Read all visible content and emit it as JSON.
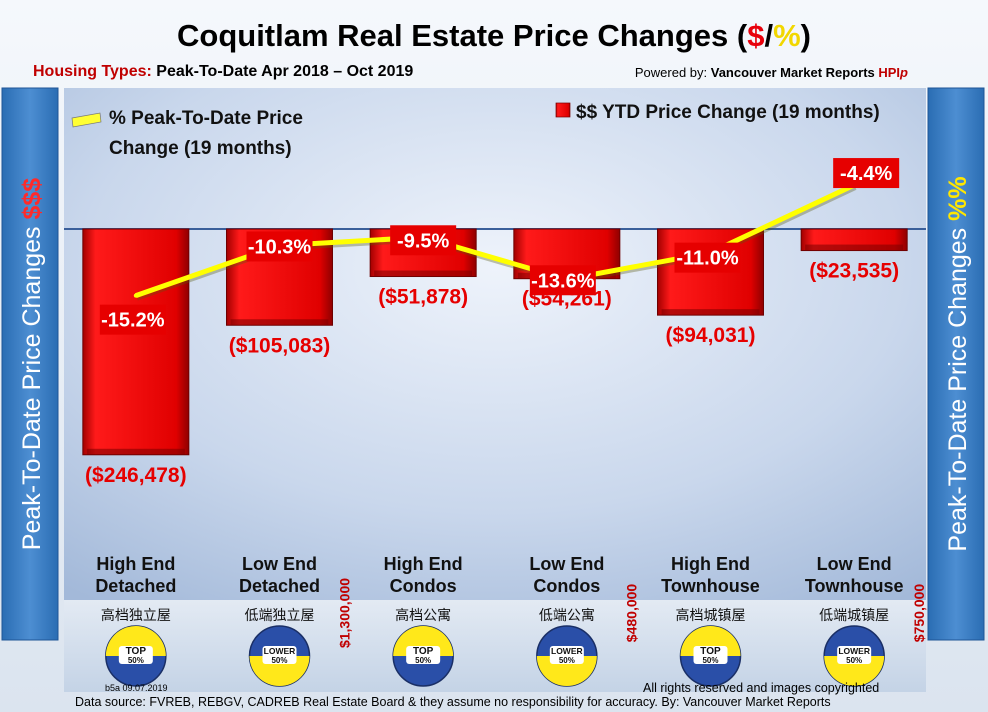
{
  "title": {
    "main": "Coquitlam Real Estate Price Changes (",
    "dollar": "$",
    "slash": "/",
    "percent": "%",
    "close": ")"
  },
  "subtitle": {
    "label": "Housing Types: ",
    "value": "Peak-To-Date Apr 2018 – Oct 2019"
  },
  "powered_by": {
    "prefix": "Powered by: ",
    "brand": "Vancouver Market Reports ",
    "hpi": "HPI",
    "p": "p"
  },
  "side_labels": {
    "left": "Peak-To-Date Price Changes ",
    "left_accent": "$$$",
    "right": "Peak-To-Date  Price  Changes ",
    "right_accent": "%%"
  },
  "legend": {
    "line": [
      "% Peak-To-Date Price",
      "Change (19 months)"
    ],
    "bar": "$$ YTD Price Change (19 months)"
  },
  "chart_data": {
    "type": "bar",
    "categories": [
      "High End Detached",
      "Low End Detached",
      "High End Condos",
      "Low End Condos",
      "High End Townhouse",
      "Low End Townhouse"
    ],
    "series": [
      {
        "name": "$$ YTD Price Change (19 months)",
        "type": "bar",
        "values": [
          -246478,
          -105083,
          -51878,
          -54261,
          -94031,
          -23535
        ],
        "labels": [
          "($246,478)",
          "($105,083)",
          "($51,878)",
          "($54,261)",
          "($94,031)",
          "($23,535)"
        ]
      },
      {
        "name": "% Peak-To-Date Price Change (19 months)",
        "type": "line",
        "values": [
          -15.2,
          -10.3,
          -9.5,
          -13.6,
          -11.0,
          -4.4
        ],
        "labels": [
          "-15.2%",
          "-10.3%",
          "-9.5%",
          "-13.6%",
          "-11.0%",
          "-4.4%"
        ]
      }
    ],
    "bar_color": "#e60000",
    "line_color": "#ffff00",
    "label_color": "#e60000",
    "legend_position": "top"
  },
  "categories_display": [
    {
      "line1": "High End",
      "line2": "Detached",
      "chinese": "高档独立屋",
      "badge": "TOP 50%",
      "badge_type": "top"
    },
    {
      "line1": "Low End",
      "line2": "Detached",
      "chinese": "低端独立屋",
      "badge": "LOWER 50%",
      "badge_type": "lower"
    },
    {
      "line1": "High End",
      "line2": "Condos",
      "chinese": "高档公寓",
      "badge": "TOP 50%",
      "badge_type": "top"
    },
    {
      "line1": "Low End",
      "line2": "Condos",
      "chinese": "低端公寓",
      "badge": "LOWER 50%",
      "badge_type": "lower"
    },
    {
      "line1": "High End",
      "line2": "Townhouse",
      "chinese": "高档城镇屋",
      "badge": "TOP 50%",
      "badge_type": "top"
    },
    {
      "line1": "Low End",
      "line2": "Townhouse",
      "chinese": "低端城镇屋",
      "badge": "LOWER 50%",
      "badge_type": "lower"
    }
  ],
  "thresholds": [
    "$1,300,000",
    "$480,000",
    "$750,000"
  ],
  "footer": {
    "note": "b5a 09.07.2019",
    "rights": "All rights reserved and  images copyrighted",
    "source": "Data source: FVREB, REBGV, CADREB Real Estate Board & they assume no responsibility for accuracy. By: Vancouver Market Reports"
  }
}
